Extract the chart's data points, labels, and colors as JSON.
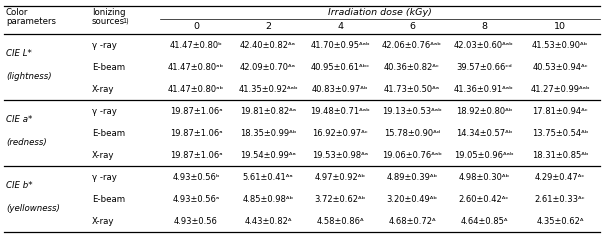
{
  "irradiation_header": "Irradiation dose (kGy)",
  "sections": [
    {
      "param_line1": "CIE L*",
      "param_line2": "(lightness)",
      "rows": [
        {
          "source": "γ -ray",
          "values": [
            "41.47±0.80ᵇ",
            "42.40±0.82ᴬᵃ",
            "41.70±0.95ᴬᵃᵇ",
            "42.06±0.76ᴬᵃᵇ",
            "42.03±0.60ᴬᵃᵇ",
            "41.53±0.90ᴬᵇ"
          ]
        },
        {
          "source": "E-beam",
          "values": [
            "41.47±0.80ᵃᵇ",
            "42.09±0.70ᴬᵃ",
            "40.95±0.61ᴬᵇᶜ",
            "40.36±0.82ᴬᶜ",
            "39.57±0.66ᶜᵈ",
            "40.53±0.94ᴬᶜ"
          ]
        },
        {
          "source": "X-ray",
          "values": [
            "41.47±0.80ᵃᵇ",
            "41.35±0.92ᴬᵃᵇ",
            "40.83±0.97ᴬᵇ",
            "41.73±0.50ᴬᵃ",
            "41.36±0.91ᴬᵃᵇ",
            "41.27±0.99ᴬᵃᵇ"
          ]
        }
      ]
    },
    {
      "param_line1": "CIE a*",
      "param_line2": "(redness)",
      "rows": [
        {
          "source": "γ -ray",
          "values": [
            "19.87±1.06ᵃ",
            "19.81±0.82ᴬᵃ",
            "19.48±0.71ᴬᵃᵇ",
            "19.13±0.53ᴬᵃᵇ",
            "18.92±0.80ᴬᵇ",
            "17.81±0.94ᴬᶜ"
          ]
        },
        {
          "source": "E-beam",
          "values": [
            "19.87±1.06ᵃ",
            "18.35±0.99ᴬᵇ",
            "16.92±0.97ᴬᶜ",
            "15.78±0.90ᴬᵈ",
            "14.34±0.57ᴬᵇ",
            "13.75±0.54ᴬᵇ"
          ]
        },
        {
          "source": "X-ray",
          "values": [
            "19.87±1.06ᵃ",
            "19.54±0.99ᴬᵃ",
            "19.53±0.98ᴬᵃ",
            "19.06±0.76ᴬᵃᵇ",
            "19.05±0.96ᴬᵃᵇ",
            "18.31±0.85ᴬᵇ"
          ]
        }
      ]
    },
    {
      "param_line1": "CIE b*",
      "param_line2": "(yellowness)",
      "rows": [
        {
          "source": "γ -ray",
          "values": [
            "4.93±0.56ᵇ",
            "5.61±0.41ᴬᵃ",
            "4.97±0.92ᴬᵇ",
            "4.89±0.39ᴬᵇ",
            "4.98±0.30ᴬᵇ",
            "4.29±0.47ᴬᶜ"
          ]
        },
        {
          "source": "E-beam",
          "values": [
            "4.93±0.56ᵃ",
            "4.85±0.98ᴬᵇ",
            "3.72±0.62ᴬᵇ",
            "3.20±0.49ᴬᵇ",
            "2.60±0.42ᴬᶜ",
            "2.61±0.33ᴬᶜ"
          ]
        },
        {
          "source": "X-ray",
          "values": [
            "4.93±0.56",
            "4.43±0.82ᴬ",
            "4.58±0.86ᴬ",
            "4.68±0.72ᴬ",
            "4.64±0.85ᴬ",
            "4.35±0.62ᴬ"
          ]
        }
      ]
    }
  ],
  "bg_color": "#ffffff",
  "text_color": "#000000",
  "line_color": "#000000",
  "font_size": 6.2,
  "header_font_size": 6.8
}
